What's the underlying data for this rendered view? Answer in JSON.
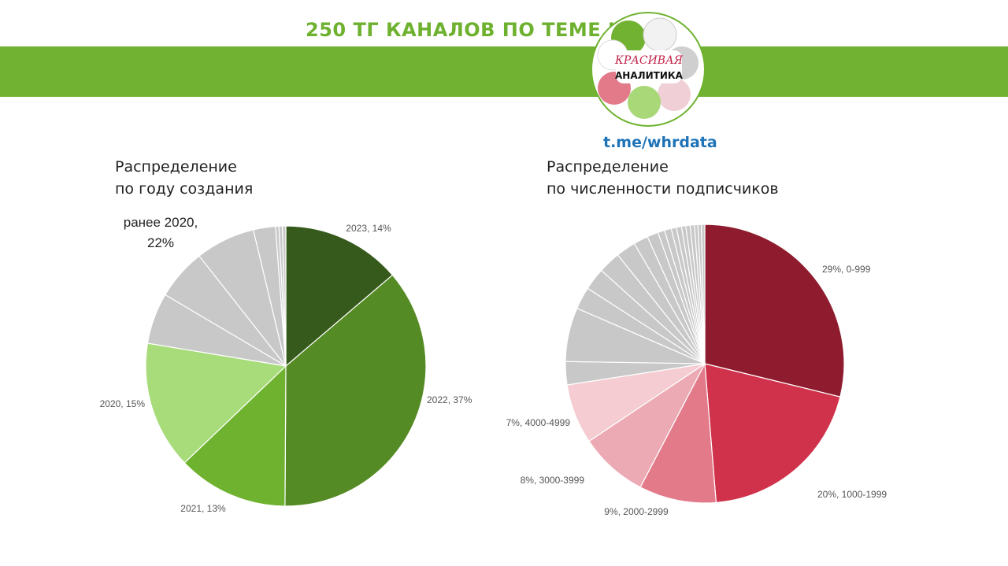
{
  "header": {
    "headline": "250 ТГ КАНАЛОВ ПО ТЕМЕ HR",
    "logo_line1": "КРАСИВАЯ",
    "logo_line2": "АНАЛИТИКА",
    "link": "t.me/whrdata",
    "banner_color": "#72b233"
  },
  "chart_data": [
    {
      "type": "pie",
      "title_line1": "Распределение",
      "title_line2": "по году создания",
      "slices": [
        {
          "label": "2023, 14%",
          "value": 14,
          "color": "#365a1c",
          "labeled": true
        },
        {
          "label": "2022, 37%",
          "value": 37,
          "color": "#558b25",
          "labeled": true
        },
        {
          "label": "2021, 13%",
          "value": 13,
          "color": "#6fb22f",
          "labeled": true
        },
        {
          "label": "2020, 15%",
          "value": 15,
          "color": "#a8dc7b",
          "labeled": true
        },
        {
          "label": "",
          "value": 6,
          "color": "#c8c8c8",
          "labeled": false
        },
        {
          "label": "",
          "value": 6,
          "color": "#c8c8c8",
          "labeled": false
        },
        {
          "label": "",
          "value": 7,
          "color": "#c8c8c8",
          "labeled": false
        },
        {
          "label": "",
          "value": 2.6,
          "color": "#c8c8c8",
          "labeled": false
        },
        {
          "label": "",
          "value": 0.4,
          "color": "#c8c8c8",
          "labeled": false
        },
        {
          "label": "",
          "value": 0.4,
          "color": "#c8c8c8",
          "labeled": false
        },
        {
          "label": "",
          "value": 0.4,
          "color": "#c8c8c8",
          "labeled": false
        }
      ],
      "group_label_line1": "ранее 2020,",
      "group_label_line2": "22%"
    },
    {
      "type": "pie",
      "title_line1": "Распределение",
      "title_line2": "по численности подписчиков",
      "slices": [
        {
          "label": "29%, 0-999",
          "value": 29,
          "color": "#8e1c2e",
          "labeled": true
        },
        {
          "label": "20%, 1000-1999",
          "value": 20,
          "color": "#d0324b",
          "labeled": true
        },
        {
          "label": "9%, 2000-2999",
          "value": 9,
          "color": "#e27a8a",
          "labeled": true
        },
        {
          "label": "8%, 3000-3999",
          "value": 8,
          "color": "#ecaab4",
          "labeled": true
        },
        {
          "label": "7%, 4000-4999",
          "value": 7,
          "color": "#f4ccd2",
          "labeled": true
        },
        {
          "label": "",
          "value": 2.7,
          "color": "#c8c8c8",
          "labeled": false
        },
        {
          "label": "",
          "value": 6.3,
          "color": "#c8c8c8",
          "labeled": false
        },
        {
          "label": "",
          "value": 2.6,
          "color": "#c8c8c8",
          "labeled": false
        },
        {
          "label": "",
          "value": 2.6,
          "color": "#c8c8c8",
          "labeled": false
        },
        {
          "label": "",
          "value": 2.6,
          "color": "#c8c8c8",
          "labeled": false
        },
        {
          "label": "",
          "value": 2.3,
          "color": "#c8c8c8",
          "labeled": false
        },
        {
          "label": "",
          "value": 1.7,
          "color": "#c8c8c8",
          "labeled": false
        },
        {
          "label": "",
          "value": 1.3,
          "color": "#c8c8c8",
          "labeled": false
        },
        {
          "label": "",
          "value": 0.8,
          "color": "#c8c8c8",
          "labeled": false
        },
        {
          "label": "",
          "value": 0.8,
          "color": "#c8c8c8",
          "labeled": false
        },
        {
          "label": "",
          "value": 0.6,
          "color": "#c8c8c8",
          "labeled": false
        },
        {
          "label": "",
          "value": 0.6,
          "color": "#c8c8c8",
          "labeled": false
        },
        {
          "label": "",
          "value": 0.5,
          "color": "#c8c8c8",
          "labeled": false
        },
        {
          "label": "",
          "value": 0.5,
          "color": "#c8c8c8",
          "labeled": false
        },
        {
          "label": "",
          "value": 0.5,
          "color": "#c8c8c8",
          "labeled": false
        },
        {
          "label": "",
          "value": 0.4,
          "color": "#c8c8c8",
          "labeled": false
        },
        {
          "label": "",
          "value": 0.4,
          "color": "#c8c8c8",
          "labeled": false
        },
        {
          "label": "",
          "value": 0.4,
          "color": "#c8c8c8",
          "labeled": false
        }
      ]
    }
  ]
}
